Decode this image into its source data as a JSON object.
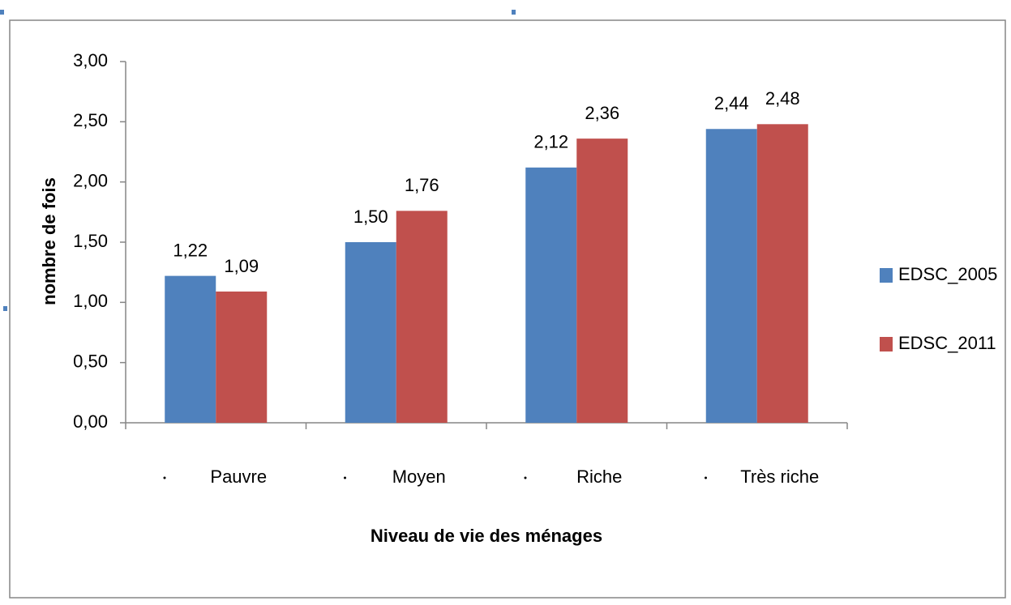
{
  "chart_data": {
    "type": "bar",
    "xlabel": "Niveau de vie des ménages",
    "ylabel": "nombre de fois",
    "categories": [
      "Pauvre",
      "Moyen",
      "Riche",
      "Très riche"
    ],
    "series": [
      {
        "name": "EDSC_2005",
        "color": "#4f81bd",
        "values": [
          1.22,
          1.5,
          2.12,
          2.44
        ],
        "value_labels": [
          "1,22",
          "1,50",
          "2,12",
          "2,44"
        ]
      },
      {
        "name": "EDSC_2011",
        "color": "#c0504d",
        "values": [
          1.09,
          1.76,
          2.36,
          2.48
        ],
        "value_labels": [
          "1,09",
          "1,76",
          "2,36",
          "2,48"
        ]
      }
    ],
    "ylim": [
      0,
      3
    ],
    "yticks": [
      {
        "value": 0,
        "label": "0,00"
      },
      {
        "value": 0.5,
        "label": "0,50"
      },
      {
        "value": 1,
        "label": "1,00"
      },
      {
        "value": 1.5,
        "label": "1,50"
      },
      {
        "value": 2,
        "label": "2,00"
      },
      {
        "value": 2.5,
        "label": "2,50"
      },
      {
        "value": 3,
        "label": "3,00"
      }
    ],
    "grid": false,
    "legend": "right"
  }
}
